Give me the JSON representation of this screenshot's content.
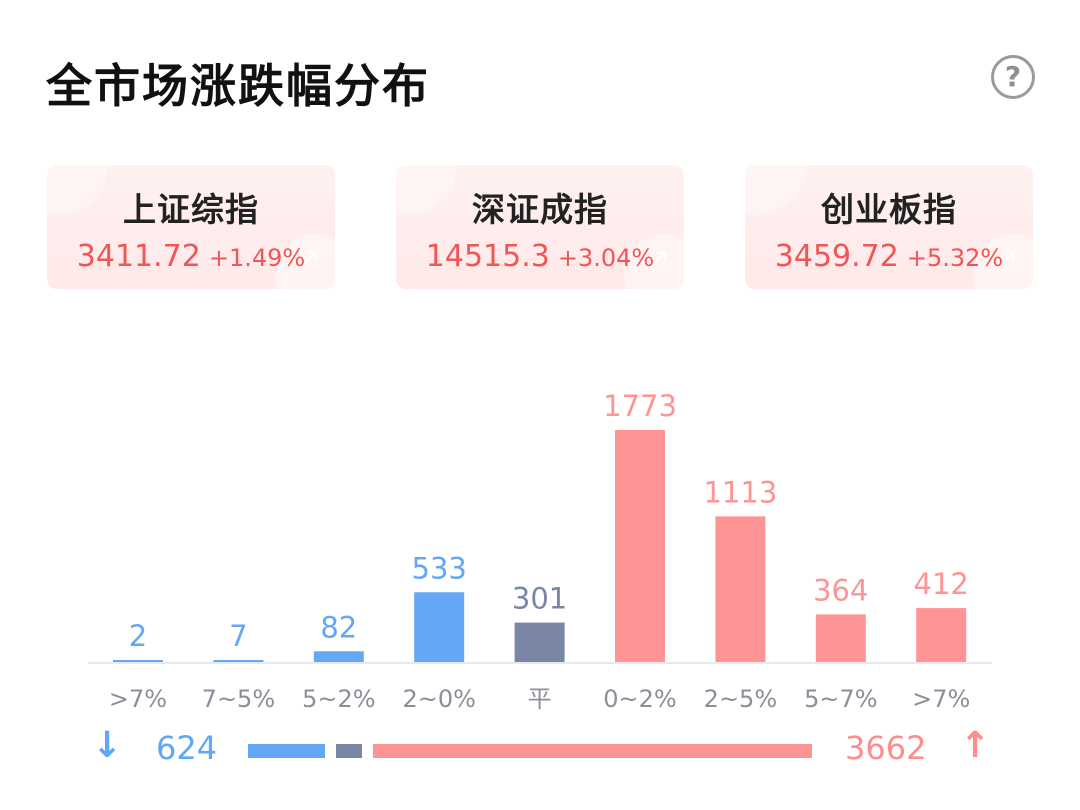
{
  "header": {
    "title": "全市场涨跌幅分布",
    "help_label": "?"
  },
  "indices": [
    {
      "name": "上证综指",
      "value": "3411.72",
      "change": "+1.49%"
    },
    {
      "name": "深证成指",
      "value": "14515.3",
      "change": "+3.04%"
    },
    {
      "name": "创业板指",
      "value": "3459.72",
      "change": "+5.32%"
    }
  ],
  "colors": {
    "down": "#63a7f5",
    "flat": "#7986a6",
    "up": "#ff9494",
    "up_text": "#f15555",
    "baseline": "#e6e9ee",
    "tick_text": "#8a8f99"
  },
  "chart_data": {
    "type": "bar",
    "categories": [
      ">7%",
      "7~5%",
      "5~2%",
      "2~0%",
      "平",
      "0~2%",
      "2~5%",
      "5~7%",
      ">7%"
    ],
    "values": [
      2,
      7,
      82,
      533,
      301,
      1773,
      1113,
      364,
      412
    ],
    "groups": [
      "down",
      "down",
      "down",
      "down",
      "flat",
      "up",
      "up",
      "up",
      "up"
    ],
    "ylim": [
      0,
      1773
    ]
  },
  "summary": {
    "down_count": "624",
    "up_count": "3662",
    "down_arrow": "↓",
    "up_arrow": "↑",
    "down": 624,
    "flat": 301,
    "up": 3662
  }
}
